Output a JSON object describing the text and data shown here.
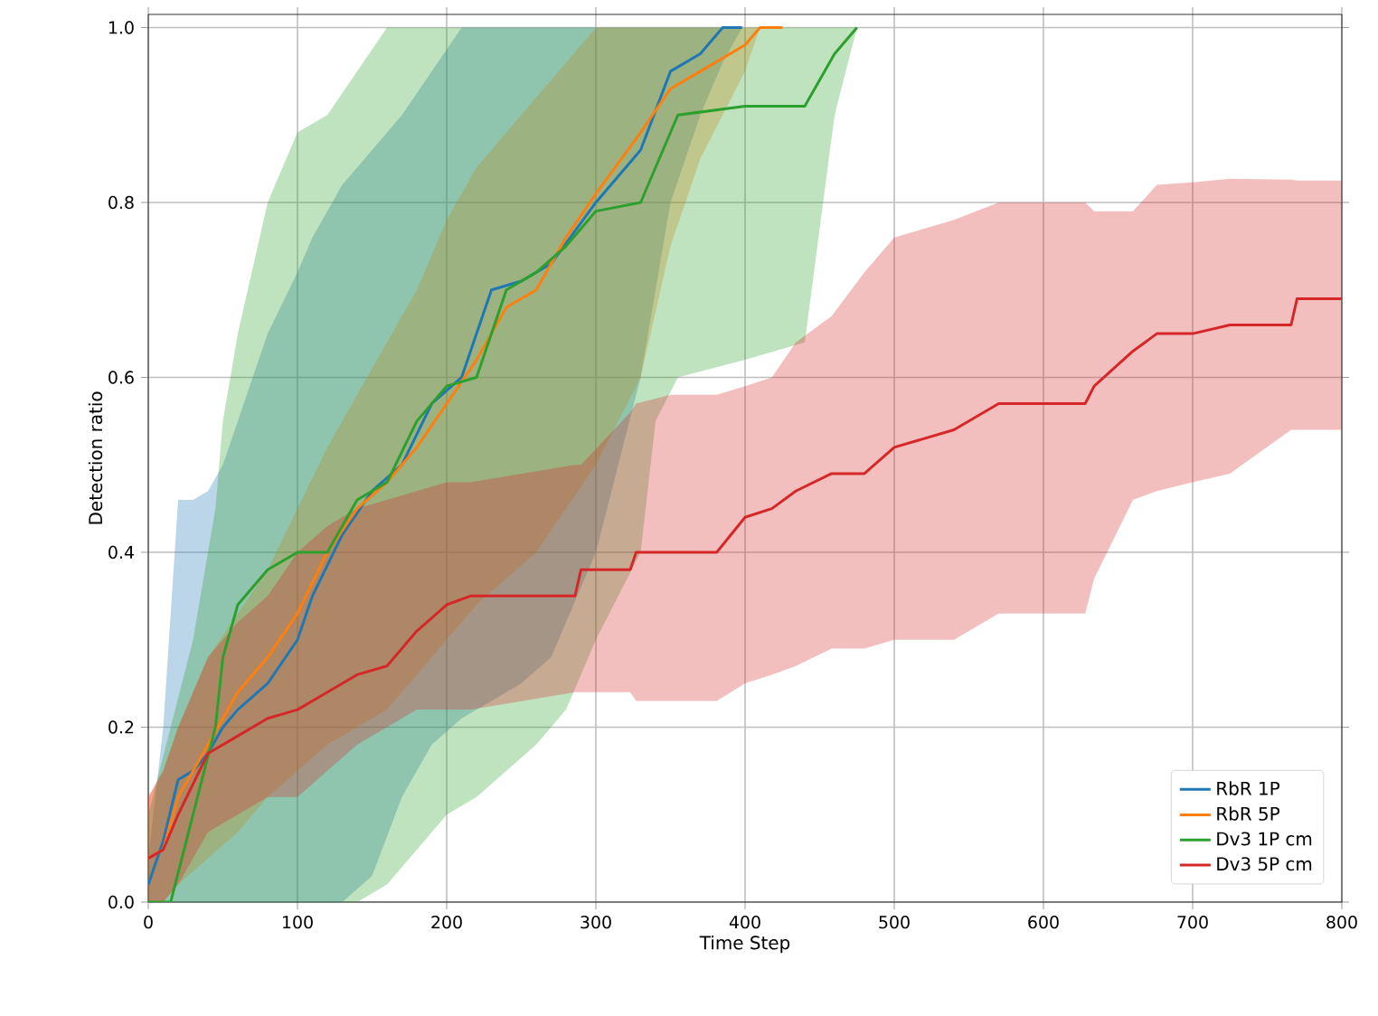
{
  "chart_data": {
    "type": "line",
    "xlabel": "Time Step",
    "ylabel": "Detection ratio",
    "xlim": [
      0,
      800
    ],
    "ylim": [
      0,
      1.015
    ],
    "xticks": [
      0,
      100,
      200,
      300,
      400,
      500,
      600,
      700,
      800
    ],
    "yticks": [
      {
        "value": 0,
        "label": "0.0"
      },
      {
        "value": 0.2,
        "label": "0.2"
      },
      {
        "value": 0.4,
        "label": "0.4"
      },
      {
        "value": 0.6,
        "label": "0.6"
      },
      {
        "value": 0.8,
        "label": "0.8"
      },
      {
        "value": 1.0,
        "label": "1.0"
      }
    ],
    "grid": true,
    "legend": "bottom right",
    "marker": "none",
    "line_style": "solid",
    "series": [
      {
        "name": "RbR 1P",
        "color": "#1f77b4",
        "x": [
          0,
          10,
          20,
          30,
          40,
          50,
          60,
          80,
          100,
          110,
          130,
          150,
          170,
          190,
          210,
          230,
          250,
          270,
          300,
          330,
          350,
          370,
          385,
          398
        ],
        "values": [
          0.02,
          0.07,
          0.14,
          0.15,
          0.17,
          0.2,
          0.22,
          0.25,
          0.3,
          0.35,
          0.42,
          0.47,
          0.5,
          0.57,
          0.6,
          0.7,
          0.71,
          0.73,
          0.8,
          0.86,
          0.95,
          0.97,
          1.0,
          1.0
        ],
        "lower": [
          0,
          0,
          0,
          0,
          0,
          0,
          0,
          0,
          0,
          0,
          0,
          0.03,
          0.12,
          0.18,
          0.21,
          0.23,
          0.25,
          0.28,
          0.4,
          0.6,
          0.8,
          0.9,
          0.96,
          1.0
        ],
        "upper": [
          0.05,
          0.2,
          0.46,
          0.46,
          0.47,
          0.5,
          0.55,
          0.65,
          0.72,
          0.76,
          0.82,
          0.86,
          0.9,
          0.95,
          1.0,
          1.0,
          1.0,
          1.0,
          1.0,
          1.0,
          1.0,
          1.0,
          1.0,
          1.0
        ]
      },
      {
        "name": "RbR 5P",
        "color": "#ff7f0e",
        "x": [
          0,
          10,
          20,
          40,
          60,
          80,
          100,
          120,
          140,
          160,
          180,
          200,
          220,
          240,
          260,
          280,
          300,
          330,
          350,
          370,
          400,
          410,
          425
        ],
        "values": [
          0.05,
          0.06,
          0.12,
          0.18,
          0.24,
          0.28,
          0.33,
          0.4,
          0.45,
          0.48,
          0.52,
          0.57,
          0.62,
          0.68,
          0.7,
          0.76,
          0.81,
          0.88,
          0.93,
          0.95,
          0.98,
          1.0,
          1.0
        ],
        "lower": [
          0,
          0,
          0.02,
          0.05,
          0.08,
          0.12,
          0.15,
          0.18,
          0.2,
          0.22,
          0.26,
          0.3,
          0.34,
          0.37,
          0.4,
          0.45,
          0.5,
          0.6,
          0.75,
          0.85,
          0.95,
          1.0,
          1.0
        ],
        "upper": [
          0.12,
          0.15,
          0.2,
          0.28,
          0.33,
          0.38,
          0.45,
          0.52,
          0.58,
          0.64,
          0.7,
          0.78,
          0.84,
          0.88,
          0.92,
          0.96,
          1.0,
          1.0,
          1.0,
          1.0,
          1.0,
          1.0,
          1.0
        ]
      },
      {
        "name": "Dv3 1P cm",
        "color": "#2ca02c",
        "x": [
          0,
          15,
          30,
          45,
          50,
          60,
          80,
          100,
          120,
          140,
          160,
          180,
          200,
          220,
          240,
          260,
          280,
          300,
          330,
          340,
          355,
          400,
          440,
          460,
          475
        ],
        "values": [
          0,
          0,
          0.1,
          0.2,
          0.28,
          0.34,
          0.38,
          0.4,
          0.4,
          0.46,
          0.48,
          0.55,
          0.59,
          0.6,
          0.7,
          0.72,
          0.75,
          0.79,
          0.8,
          0.84,
          0.9,
          0.91,
          0.91,
          0.97,
          1.0
        ],
        "lower": [
          0,
          0,
          0,
          0,
          0,
          0,
          0,
          0,
          0,
          0,
          0.02,
          0.06,
          0.1,
          0.12,
          0.15,
          0.18,
          0.22,
          0.3,
          0.4,
          0.55,
          0.6,
          0.62,
          0.64,
          0.9,
          1.0
        ],
        "upper": [
          0.1,
          0.2,
          0.3,
          0.45,
          0.55,
          0.65,
          0.8,
          0.88,
          0.9,
          0.95,
          1.0,
          1.0,
          1.0,
          1.0,
          1.0,
          1.0,
          1.0,
          1.0,
          1.0,
          1.0,
          1.0,
          1.0,
          1.0,
          1.0,
          1.0
        ]
      },
      {
        "name": "Dv3 5P cm",
        "color": "#d62728",
        "x": [
          0,
          10,
          20,
          40,
          60,
          80,
          100,
          120,
          140,
          160,
          180,
          200,
          216,
          286,
          290,
          323,
          327,
          350,
          381,
          400,
          418,
          434,
          458,
          480,
          500,
          540,
          570,
          600,
          628,
          634,
          660,
          676,
          700,
          725,
          766,
          770,
          800
        ],
        "values": [
          0.05,
          0.06,
          0.1,
          0.17,
          0.19,
          0.21,
          0.22,
          0.24,
          0.26,
          0.27,
          0.31,
          0.34,
          0.35,
          0.35,
          0.38,
          0.38,
          0.4,
          0.4,
          0.4,
          0.44,
          0.45,
          0.47,
          0.49,
          0.49,
          0.52,
          0.54,
          0.57,
          0.57,
          0.57,
          0.59,
          0.63,
          0.65,
          0.65,
          0.66,
          0.66,
          0.69,
          0.69
        ],
        "lower": [
          0,
          0,
          0.02,
          0.08,
          0.1,
          0.12,
          0.12,
          0.15,
          0.18,
          0.2,
          0.22,
          0.22,
          0.22,
          0.24,
          0.24,
          0.24,
          0.23,
          0.23,
          0.23,
          0.25,
          0.26,
          0.27,
          0.29,
          0.29,
          0.3,
          0.3,
          0.33,
          0.33,
          0.33,
          0.37,
          0.46,
          0.47,
          0.48,
          0.49,
          0.54,
          0.54,
          0.54
        ],
        "upper": [
          0.12,
          0.15,
          0.2,
          0.28,
          0.32,
          0.35,
          0.4,
          0.43,
          0.45,
          0.46,
          0.47,
          0.48,
          0.48,
          0.5,
          0.5,
          0.56,
          0.57,
          0.58,
          0.58,
          0.59,
          0.6,
          0.64,
          0.67,
          0.72,
          0.76,
          0.78,
          0.8,
          0.8,
          0.8,
          0.79,
          0.79,
          0.82,
          0.823,
          0.827,
          0.826,
          0.825,
          0.825
        ]
      }
    ]
  }
}
